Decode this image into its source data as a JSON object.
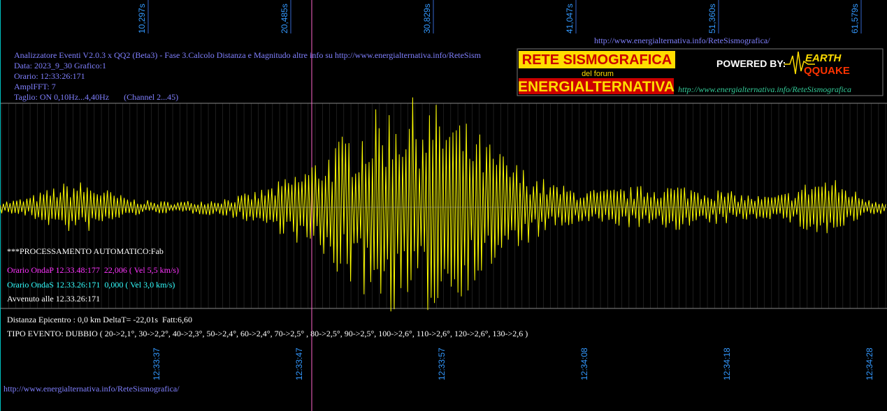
{
  "top_axis": {
    "labels": [
      "10,297s",
      "20,485s",
      "30,829s",
      "41,047s",
      "51,360s",
      "61,579s"
    ]
  },
  "header_url": "http://www.energialternativa.info/ReteSismografica/",
  "info": {
    "lines": [
      "Analizzatore Eventi V2.0.3 x QQ2 (Beta3) - Fase 3.Calcolo Distanza e Magnitudo altre info su http://www.energialternativa.info/ReteSism",
      "Data: 2023_9_30 Grafico:1",
      "Orario: 12:33:26:171",
      "AmplFFT: 7",
      "Taglio: ON 0,10Hz...4,40Hz       (Channel 2...45)"
    ]
  },
  "logo": {
    "title": "RETE SISMOGRAFICA",
    "subtitle": "del forum",
    "name": "ENERGIALTERNATIVA",
    "powered": "POWERED BY:",
    "brand_top": "EARTH",
    "brand_bottom": "QQUAKE",
    "url": "http://www.energialternativa.info/ReteSismografica"
  },
  "events": {
    "processing": "***PROCESSAMENTO AUTOMATICO:Fab",
    "wave_p": "Orario OndaP 12.33.48:177  22,006 ( Vel 5,5 km/s)",
    "wave_s": "Orario OndaS 12.33.26:171  0,000 ( Vel 3,0 km/s)",
    "occurred": "Avvenuto alle 12.33.26:171",
    "distance": "Distanza Epicentro : 0,0 km DeltaT= -22,01s  Fatt:6,60",
    "event_type": "TIPO EVENTO: DUBBIO ( 20->2,1°, 30->2,2°, 40->2,3°, 50->2,4°, 60->2,4°, 70->2,5° , 80->2,5°, 90->2,5°, 100->2,6°, 110->2,6°, 120->2,6°, 130->2,6 )"
  },
  "bottom_axis": {
    "labels": [
      "12:33:37",
      "12:33:47",
      "12:33:57",
      "12:34:08",
      "12:34:18",
      "12:34:28"
    ]
  },
  "footer_url": "http://www.energialternativa.info/ReteSismografica/"
}
